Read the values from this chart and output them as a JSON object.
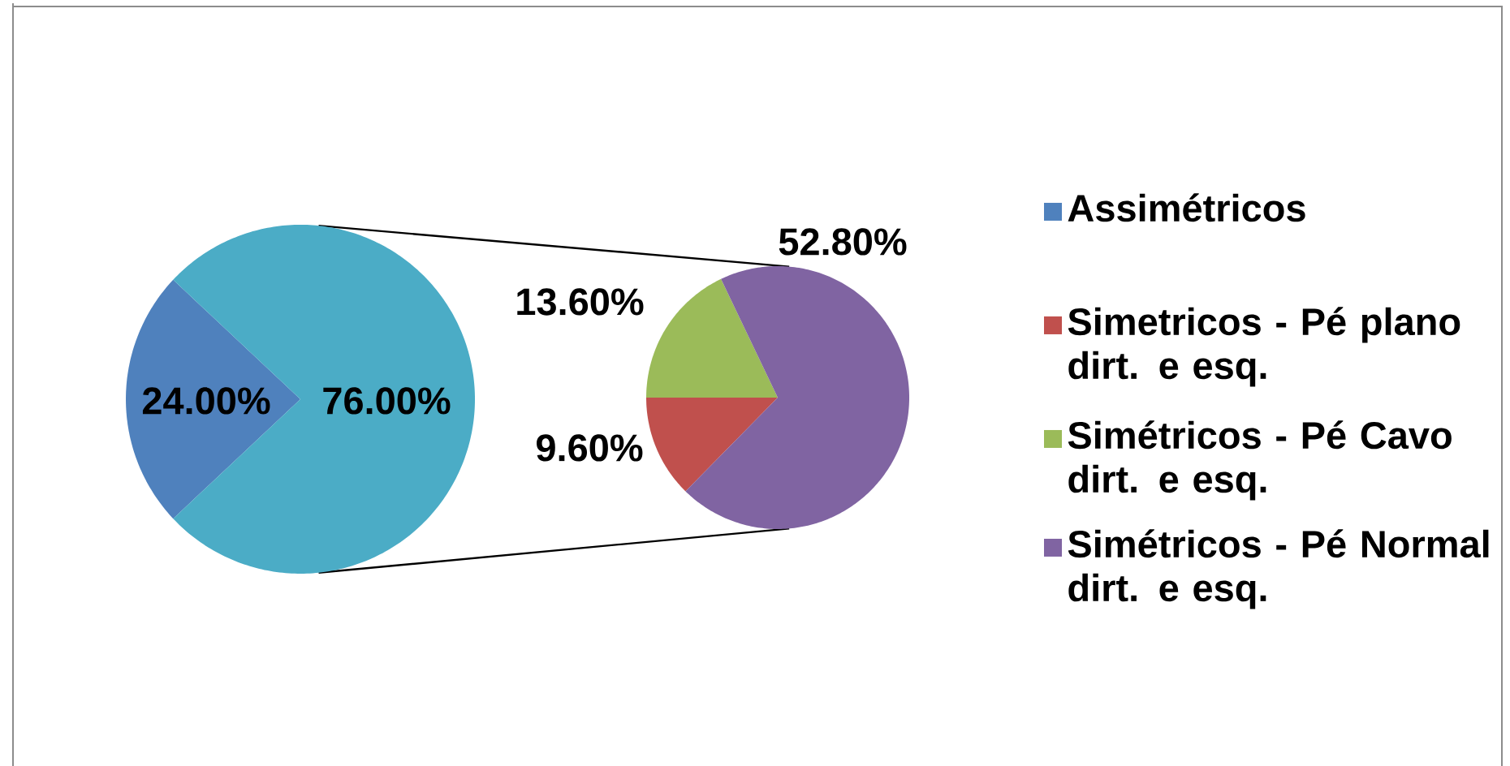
{
  "chart_data": [
    {
      "type": "pie",
      "categories": [
        "Assimétricos",
        null
      ],
      "values": [
        24,
        76
      ],
      "colors": [
        "#4f81bd",
        "#4bacc6"
      ],
      "value_labels": [
        "24.00%",
        "76.00%"
      ],
      "legend": "right"
    },
    {
      "type": "pie",
      "categories": [
        "Simetricos - Pé plano dirt. e esq.",
        "Simétricos - Pé Cavo dirt. e esq.",
        "Simétricos - Pé Normal dirt. e esq."
      ],
      "values": [
        9.6,
        13.6,
        52.8
      ],
      "colors": [
        "#c0504d",
        "#9bbb59",
        "#8064a2"
      ],
      "value_labels": [
        "9.60%",
        "13.60%",
        "52.80%"
      ],
      "legend": "right"
    }
  ]
}
